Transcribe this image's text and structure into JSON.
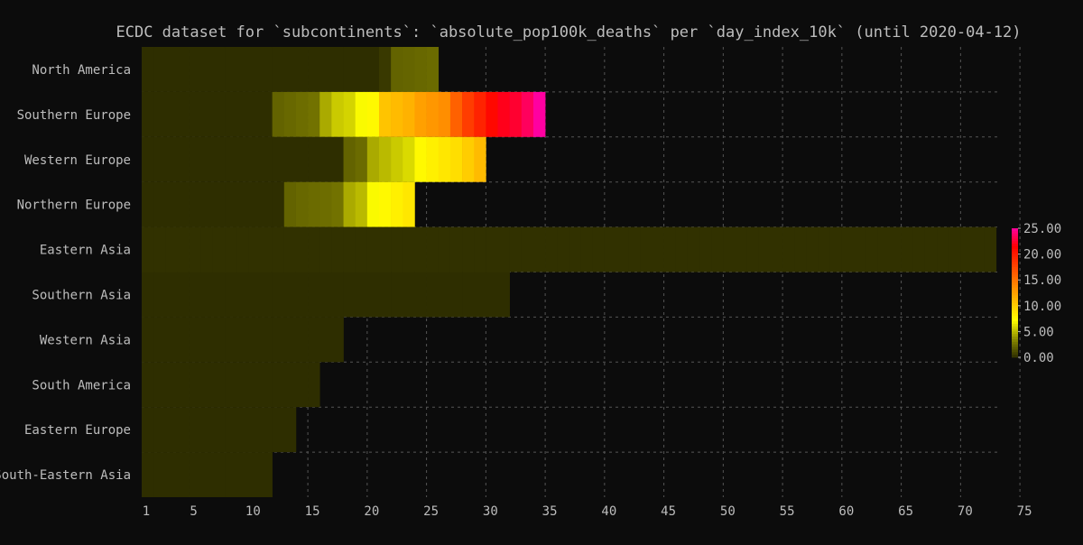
{
  "chart_data": {
    "type": "heatmap",
    "title": "ECDC dataset for `subcontinents`: `absolute_pop100k_deaths` per `day_index_10k` (until 2020-04-12)",
    "xlabel": "",
    "ylabel": "",
    "x_ticks": [
      "1",
      "5",
      "10",
      "15",
      "20",
      "25",
      "30",
      "35",
      "40",
      "45",
      "50",
      "55",
      "60",
      "65",
      "70",
      "75"
    ],
    "xlim": [
      1,
      75
    ],
    "colorbar": {
      "ticks": [
        "0.00",
        "5.00",
        "10.00",
        "15.00",
        "20.00",
        "25.00"
      ],
      "range": [
        0,
        25
      ],
      "position": "right"
    },
    "grid": true,
    "rows": [
      {
        "label": "North America",
        "last_day": 25,
        "values": [
          0,
          0,
          0,
          0,
          0,
          0,
          0,
          0,
          0,
          0,
          0,
          0,
          0,
          0,
          0,
          0,
          0,
          0,
          0,
          0,
          0.4,
          2.0,
          2.1,
          2.2,
          2.3
        ]
      },
      {
        "label": "Southern Europe",
        "last_day": 34,
        "values": [
          0,
          0,
          0,
          0,
          0,
          0,
          0,
          0,
          0,
          0,
          0,
          2.0,
          2.2,
          2.4,
          2.6,
          4.5,
          5.5,
          5.8,
          7.0,
          7.5,
          10.5,
          11.0,
          11.5,
          12.5,
          13.0,
          13.5,
          16.0,
          18.0,
          19.5,
          21.0,
          22.0,
          22.5,
          23.5,
          25.0
        ]
      },
      {
        "label": "Western Europe",
        "last_day": 29,
        "values": [
          0,
          0,
          0,
          0,
          0,
          0,
          0,
          0,
          0,
          0,
          0,
          0,
          0,
          0,
          0,
          0,
          0,
          2.0,
          2.3,
          4.5,
          5.0,
          5.5,
          6.0,
          7.5,
          8.0,
          8.5,
          9.0,
          10.0,
          11.0
        ]
      },
      {
        "label": "Northern Europe",
        "last_day": 23,
        "values": [
          0,
          0,
          0,
          0,
          0,
          0,
          0,
          0,
          0,
          0,
          0,
          0,
          2.0,
          2.2,
          2.3,
          2.4,
          2.6,
          4.5,
          5.0,
          7.0,
          7.5,
          8.0,
          8.5
        ]
      },
      {
        "label": "Eastern Asia",
        "last_day": 72,
        "values": [
          0.1,
          0.1,
          0.1,
          0.1,
          0.1,
          0.1,
          0.1,
          0.1,
          0.1,
          0.1,
          0.1,
          0.1,
          0.1,
          0.1,
          0.1,
          0.1,
          0.1,
          0.1,
          0.1,
          0.1,
          0.1,
          0.1,
          0.1,
          0.1,
          0.1,
          0.1,
          0.1,
          0.1,
          0.1,
          0.1,
          0.1,
          0.1,
          0.1,
          0.1,
          0.1,
          0.1,
          0.1,
          0.1,
          0.1,
          0.1,
          0.1,
          0.1,
          0.1,
          0.1,
          0.1,
          0.1,
          0.1,
          0.1,
          0.1,
          0.1,
          0.1,
          0.1,
          0.1,
          0.1,
          0.1,
          0.1,
          0.1,
          0.1,
          0.1,
          0.1,
          0.1,
          0.1,
          0.1,
          0.1,
          0.1,
          0.1,
          0.1,
          0.1,
          0.1,
          0.1,
          0.1,
          0.1
        ]
      },
      {
        "label": "Southern Asia",
        "last_day": 31,
        "values": [
          0,
          0,
          0,
          0,
          0,
          0,
          0,
          0,
          0,
          0,
          0,
          0,
          0,
          0,
          0,
          0,
          0,
          0,
          0,
          0,
          0,
          0,
          0,
          0,
          0,
          0,
          0,
          0,
          0,
          0,
          0
        ]
      },
      {
        "label": "Western Asia",
        "last_day": 17,
        "values": [
          0,
          0,
          0,
          0,
          0,
          0,
          0,
          0,
          0,
          0,
          0,
          0,
          0,
          0,
          0,
          0,
          0
        ]
      },
      {
        "label": "South America",
        "last_day": 15,
        "values": [
          0,
          0,
          0,
          0,
          0,
          0,
          0,
          0,
          0,
          0,
          0,
          0,
          0,
          0,
          0
        ]
      },
      {
        "label": "Eastern Europe",
        "last_day": 13,
        "values": [
          0,
          0,
          0,
          0,
          0,
          0,
          0,
          0,
          0,
          0,
          0,
          0,
          0
        ]
      },
      {
        "label": "South-Eastern Asia",
        "last_day": 11,
        "values": [
          0,
          0,
          0,
          0,
          0,
          0,
          0,
          0,
          0,
          0,
          0
        ]
      }
    ]
  },
  "colors": {
    "background": "#0c0c0c",
    "grid": "#555555",
    "text": "#bdbdbd",
    "scale": [
      "#2e2e00",
      "#8c8c00",
      "#ffff00",
      "#ffc000",
      "#ff8000",
      "#ff4000",
      "#ff0000",
      "#ff00a0"
    ]
  }
}
